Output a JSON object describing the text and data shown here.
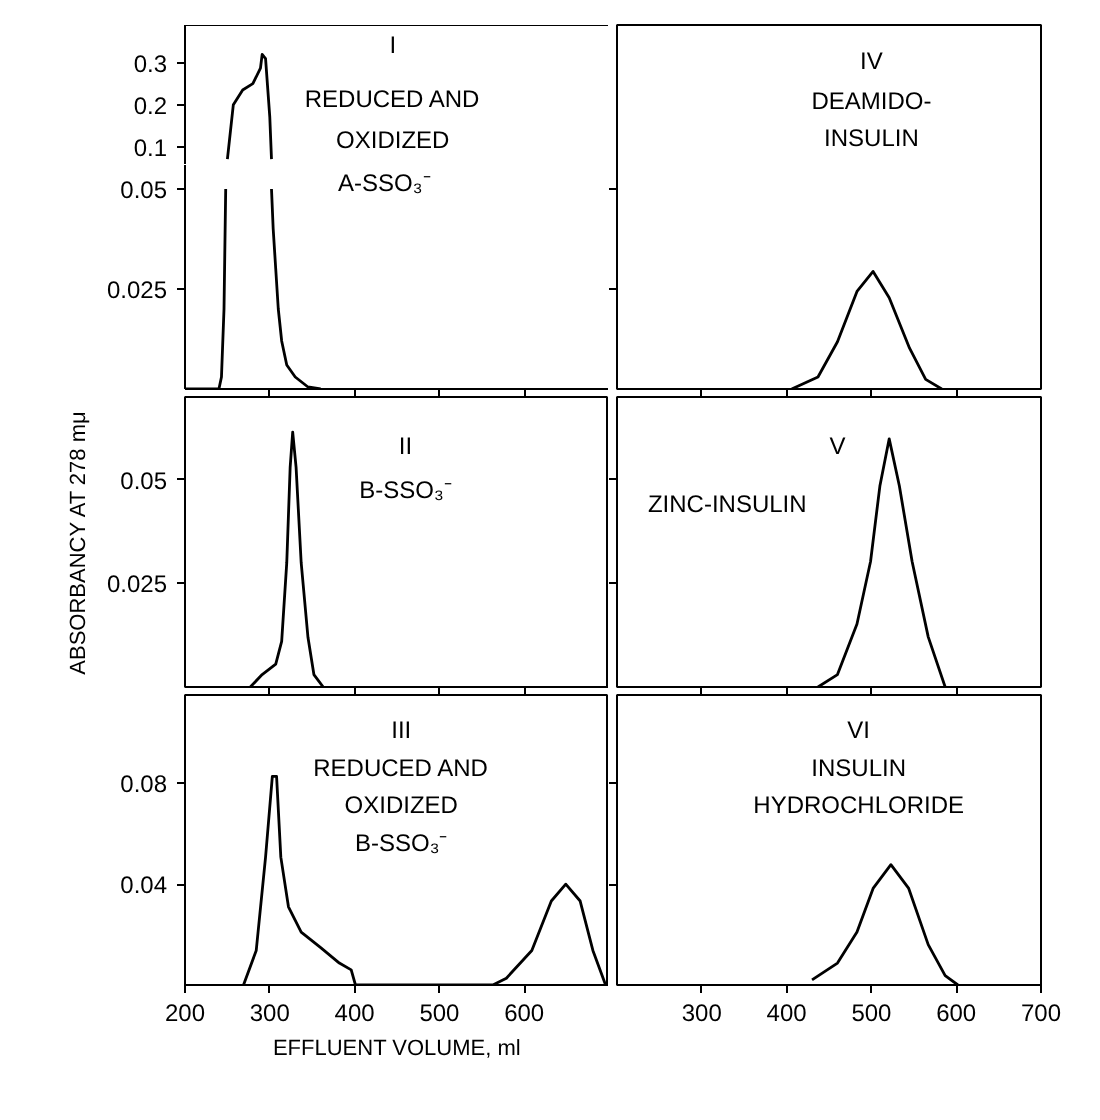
{
  "chart_data": [
    {
      "type": "line",
      "xlim": [
        200,
        700
      ],
      "ylim": [
        0.056,
        0.39
      ],
      "yticks": [
        0.1,
        0.2,
        0.3
      ],
      "tick_labels": "y",
      "series": [
        {
          "color": "#000000",
          "x": [
            250,
            257,
            268,
            280,
            289,
            291,
            295,
            300,
            302
          ],
          "values": [
            0.07,
            0.2,
            0.235,
            0.25,
            0.287,
            0.32,
            0.31,
            0.17,
            0.07
          ]
        }
      ],
      "annotations": [
        "I",
        "REDUCED AND",
        "OXIDIZED"
      ]
    },
    {
      "type": "line",
      "xlim": [
        200,
        700
      ],
      "ylim": [
        0,
        0.056
      ],
      "xticks": [
        300,
        400,
        500,
        600
      ],
      "yticks": [
        0.025,
        0.05
      ],
      "tick_labels": "y",
      "series": [
        {
          "color": "#000000",
          "x": [
            200,
            240,
            243,
            246,
            248,
            250,
            300,
            302,
            304,
            307,
            310,
            314,
            320,
            330,
            345,
            360
          ],
          "values": [
            0,
            0,
            0.003,
            0.02,
            0.05,
            null,
            null,
            0.05,
            0.04,
            0.03,
            0.02,
            0.012,
            0.006,
            0.003,
            0.0005,
            0
          ]
        }
      ],
      "annotations": [
        "A-SSO₃⁻"
      ]
    },
    {
      "type": "line",
      "xlim": [
        200,
        700
      ],
      "ylim": [
        0,
        0.091
      ],
      "xticks": [
        300,
        400,
        500,
        600
      ],
      "yticks": [
        0.025,
        0.05
      ],
      "tick_labels": false,
      "series": [
        {
          "color": "#000000",
          "x": [
            406,
            437,
            460,
            483,
            502,
            521,
            545,
            564,
            583
          ],
          "values": [
            0,
            0.003,
            0.0118,
            0.0244,
            0.0294,
            0.0228,
            0.0102,
            0.0024,
            0
          ]
        }
      ],
      "annotations": [
        "IV",
        "DEAMIDO-",
        "INSULIN"
      ]
    },
    {
      "type": "line",
      "xlim": [
        200,
        700
      ],
      "ylim": [
        0,
        0.07
      ],
      "xticks": [
        300,
        400,
        500,
        600
      ],
      "yticks": [
        0.025,
        0.05
      ],
      "tick_labels": "y",
      "ylabel": "ABSORBANCY AT 278 mμ",
      "series": [
        {
          "color": "#000000",
          "x": [
            277,
            291,
            307,
            314,
            320,
            324,
            327,
            331,
            337,
            345,
            352,
            363
          ],
          "values": [
            0,
            0.003,
            0.0055,
            0.011,
            0.03,
            0.053,
            0.0615,
            0.053,
            0.03,
            0.012,
            0.003,
            0
          ]
        }
      ],
      "annotations": [
        "II",
        "B-SSO₃⁻"
      ]
    },
    {
      "type": "line",
      "xlim": [
        200,
        700
      ],
      "ylim": [
        0,
        0.07
      ],
      "xticks": [
        300,
        400,
        500,
        600
      ],
      "yticks": [
        0.025,
        0.05
      ],
      "tick_labels": false,
      "series": [
        {
          "color": "#000000",
          "x": [
            437,
            460,
            483,
            499,
            510,
            521,
            533,
            548,
            567,
            587
          ],
          "values": [
            0,
            0.003,
            0.0152,
            0.0303,
            0.0485,
            0.0599,
            0.0485,
            0.0303,
            0.0121,
            0
          ]
        }
      ],
      "annotations": [
        "V",
        "ZINC-INSULIN"
      ]
    },
    {
      "type": "line",
      "xlim": [
        200,
        700
      ],
      "ylim": [
        0,
        0.115
      ],
      "xticks": [
        200,
        300,
        400,
        500,
        600
      ],
      "yticks": [
        0.04,
        0.08
      ],
      "xlabel": "EFFLUENT VOLUME, ml",
      "series": [
        {
          "color": "#000000",
          "x": [
            269,
            284,
            295,
            303,
            308,
            313,
            322,
            337,
            360,
            382,
            396,
            401,
            556,
            563,
            579,
            609,
            632,
            649,
            666,
            681,
            696
          ],
          "values": [
            0,
            0.0137,
            0.0507,
            0.0827,
            0.0827,
            0.0507,
            0.031,
            0.021,
            0.0148,
            0.0087,
            0.006,
            0,
            0,
            0,
            0.0027,
            0.0137,
            0.0333,
            0.04,
            0.0333,
            0.0137,
            0
          ]
        }
      ],
      "annotations": [
        "III",
        "REDUCED AND",
        "OXIDIZED",
        "B-SSO₃⁻"
      ]
    },
    {
      "type": "line",
      "xlim": [
        200,
        700
      ],
      "ylim": [
        0,
        0.115
      ],
      "xticks": [
        300,
        400,
        500,
        600,
        700
      ],
      "yticks": [
        0.04,
        0.08
      ],
      "tick_labels": "x",
      "series": [
        {
          "color": "#000000",
          "x": [
            430,
            460,
            483,
            502,
            523,
            544,
            567,
            587,
            602
          ],
          "values": [
            0.002,
            0.0087,
            0.021,
            0.0383,
            0.0477,
            0.0383,
            0.016,
            0.0037,
            0
          ]
        }
      ],
      "annotations": [
        "VI",
        "INSULIN",
        "HYDROCHLORIDE"
      ]
    }
  ]
}
